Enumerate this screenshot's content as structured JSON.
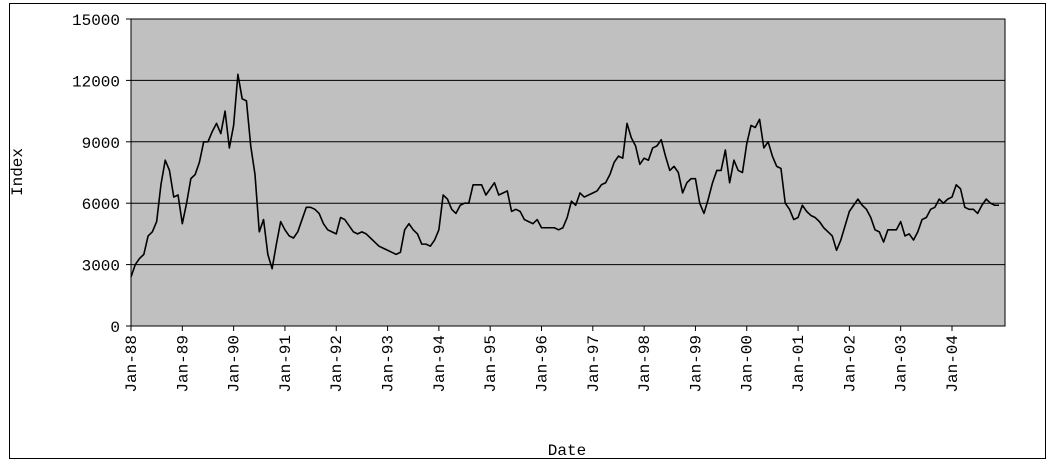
{
  "chart_data": {
    "type": "line",
    "x_label": "Date",
    "y_label": "Index",
    "x": [
      "Jan-88",
      "Feb-88",
      "Mar-88",
      "Apr-88",
      "May-88",
      "Jun-88",
      "Jul-88",
      "Aug-88",
      "Sep-88",
      "Oct-88",
      "Nov-88",
      "Dec-88",
      "Jan-89",
      "Feb-89",
      "Mar-89",
      "Apr-89",
      "May-89",
      "Jun-89",
      "Jul-89",
      "Aug-89",
      "Sep-89",
      "Oct-89",
      "Nov-89",
      "Dec-89",
      "Jan-90",
      "Feb-90",
      "Mar-90",
      "Apr-90",
      "May-90",
      "Jun-90",
      "Jul-90",
      "Aug-90",
      "Sep-90",
      "Oct-90",
      "Nov-90",
      "Dec-90",
      "Jan-91",
      "Feb-91",
      "Mar-91",
      "Apr-91",
      "May-91",
      "Jun-91",
      "Jul-91",
      "Aug-91",
      "Sep-91",
      "Oct-91",
      "Nov-91",
      "Dec-91",
      "Jan-92",
      "Feb-92",
      "Mar-92",
      "Apr-92",
      "May-92",
      "Jun-92",
      "Jul-92",
      "Aug-92",
      "Sep-92",
      "Oct-92",
      "Nov-92",
      "Dec-92",
      "Jan-93",
      "Feb-93",
      "Mar-93",
      "Apr-93",
      "May-93",
      "Jun-93",
      "Jul-93",
      "Aug-93",
      "Sep-93",
      "Oct-93",
      "Nov-93",
      "Dec-93",
      "Jan-94",
      "Feb-94",
      "Mar-94",
      "Apr-94",
      "May-94",
      "Jun-94",
      "Jul-94",
      "Aug-94",
      "Sep-94",
      "Oct-94",
      "Nov-94",
      "Dec-94",
      "Jan-95",
      "Feb-95",
      "Mar-95",
      "Apr-95",
      "May-95",
      "Jun-95",
      "Jul-95",
      "Aug-95",
      "Sep-95",
      "Oct-95",
      "Nov-95",
      "Dec-95",
      "Jan-96",
      "Feb-96",
      "Mar-96",
      "Apr-96",
      "May-96",
      "Jun-96",
      "Jul-96",
      "Aug-96",
      "Sep-96",
      "Oct-96",
      "Nov-96",
      "Dec-96",
      "Jan-97",
      "Feb-97",
      "Mar-97",
      "Apr-97",
      "May-97",
      "Jun-97",
      "Jul-97",
      "Aug-97",
      "Sep-97",
      "Oct-97",
      "Nov-97",
      "Dec-97",
      "Jan-98",
      "Feb-98",
      "Mar-98",
      "Apr-98",
      "May-98",
      "Jun-98",
      "Jul-98",
      "Aug-98",
      "Sep-98",
      "Oct-98",
      "Nov-98",
      "Dec-98",
      "Jan-99",
      "Feb-99",
      "Mar-99",
      "Apr-99",
      "May-99",
      "Jun-99",
      "Jul-99",
      "Aug-99",
      "Sep-99",
      "Oct-99",
      "Nov-99",
      "Dec-99",
      "Jan-00",
      "Feb-00",
      "Mar-00",
      "Apr-00",
      "May-00",
      "Jun-00",
      "Jul-00",
      "Aug-00",
      "Sep-00",
      "Oct-00",
      "Nov-00",
      "Dec-00",
      "Jan-01",
      "Feb-01",
      "Mar-01",
      "Apr-01",
      "May-01",
      "Jun-01",
      "Jul-01",
      "Aug-01",
      "Sep-01",
      "Oct-01",
      "Nov-01",
      "Dec-01",
      "Jan-02",
      "Feb-02",
      "Mar-02",
      "Apr-02",
      "May-02",
      "Jun-02",
      "Jul-02",
      "Aug-02",
      "Sep-02",
      "Oct-02",
      "Nov-02",
      "Dec-02",
      "Jan-03",
      "Feb-03",
      "Mar-03",
      "Apr-03",
      "May-03",
      "Jun-03",
      "Jul-03",
      "Aug-03",
      "Sep-03",
      "Oct-03",
      "Nov-03",
      "Dec-03",
      "Jan-04",
      "Feb-04",
      "Mar-04",
      "Apr-04",
      "May-04",
      "Jun-04",
      "Jul-04",
      "Aug-04",
      "Sep-04",
      "Oct-04",
      "Nov-04",
      "Dec-04"
    ],
    "values": [
      2400,
      3000,
      3300,
      3500,
      4400,
      4600,
      5100,
      6900,
      8100,
      7600,
      6300,
      6400,
      5000,
      6000,
      7200,
      7400,
      8000,
      9000,
      9000,
      9500,
      9900,
      9400,
      10500,
      8700,
      9800,
      12300,
      11100,
      11000,
      8800,
      7400,
      4600,
      5200,
      3500,
      2800,
      4000,
      5100,
      4700,
      4400,
      4300,
      4600,
      5200,
      5800,
      5800,
      5700,
      5500,
      5000,
      4700,
      4600,
      4500,
      5300,
      5200,
      4900,
      4600,
      4500,
      4600,
      4500,
      4300,
      4100,
      3900,
      3800,
      3700,
      3600,
      3500,
      3600,
      4700,
      5000,
      4700,
      4500,
      4000,
      4000,
      3900,
      4200,
      4700,
      6400,
      6200,
      5700,
      5500,
      5900,
      6000,
      6000,
      6900,
      6900,
      6900,
      6400,
      6700,
      7000,
      6400,
      6500,
      6600,
      5600,
      5700,
      5600,
      5200,
      5100,
      5000,
      5200,
      4800,
      4800,
      4800,
      4800,
      4700,
      4800,
      5300,
      6100,
      5900,
      6500,
      6300,
      6400,
      6500,
      6600,
      6900,
      7000,
      7400,
      8000,
      8300,
      8200,
      9900,
      9200,
      8800,
      7900,
      8200,
      8100,
      8700,
      8800,
      9100,
      8300,
      7600,
      7800,
      7500,
      6500,
      7000,
      7200,
      7200,
      6000,
      5500,
      6200,
      7000,
      7600,
      7600,
      8600,
      7000,
      8100,
      7600,
      7500,
      8900,
      9800,
      9700,
      10100,
      8700,
      9000,
      8300,
      7800,
      7700,
      6000,
      5700,
      5200,
      5300,
      5900,
      5600,
      5400,
      5300,
      5100,
      4800,
      4600,
      4400,
      3700,
      4200,
      4900,
      5600,
      5900,
      6200,
      5900,
      5700,
      5300,
      4700,
      4600,
      4100,
      4700,
      4700,
      4700,
      5100,
      4400,
      4500,
      4200,
      4600,
      5200,
      5300,
      5700,
      5800,
      6200,
      6000,
      6200,
      6300,
      6900,
      6700,
      5800,
      5700,
      5700,
      5500,
      5900,
      6200,
      6000,
      5900,
      5900
    ],
    "color": "#000000",
    "ylim": [
      0,
      15000
    ],
    "yticks": [
      0,
      3000,
      6000,
      9000,
      12000,
      15000
    ],
    "grid": true
  }
}
